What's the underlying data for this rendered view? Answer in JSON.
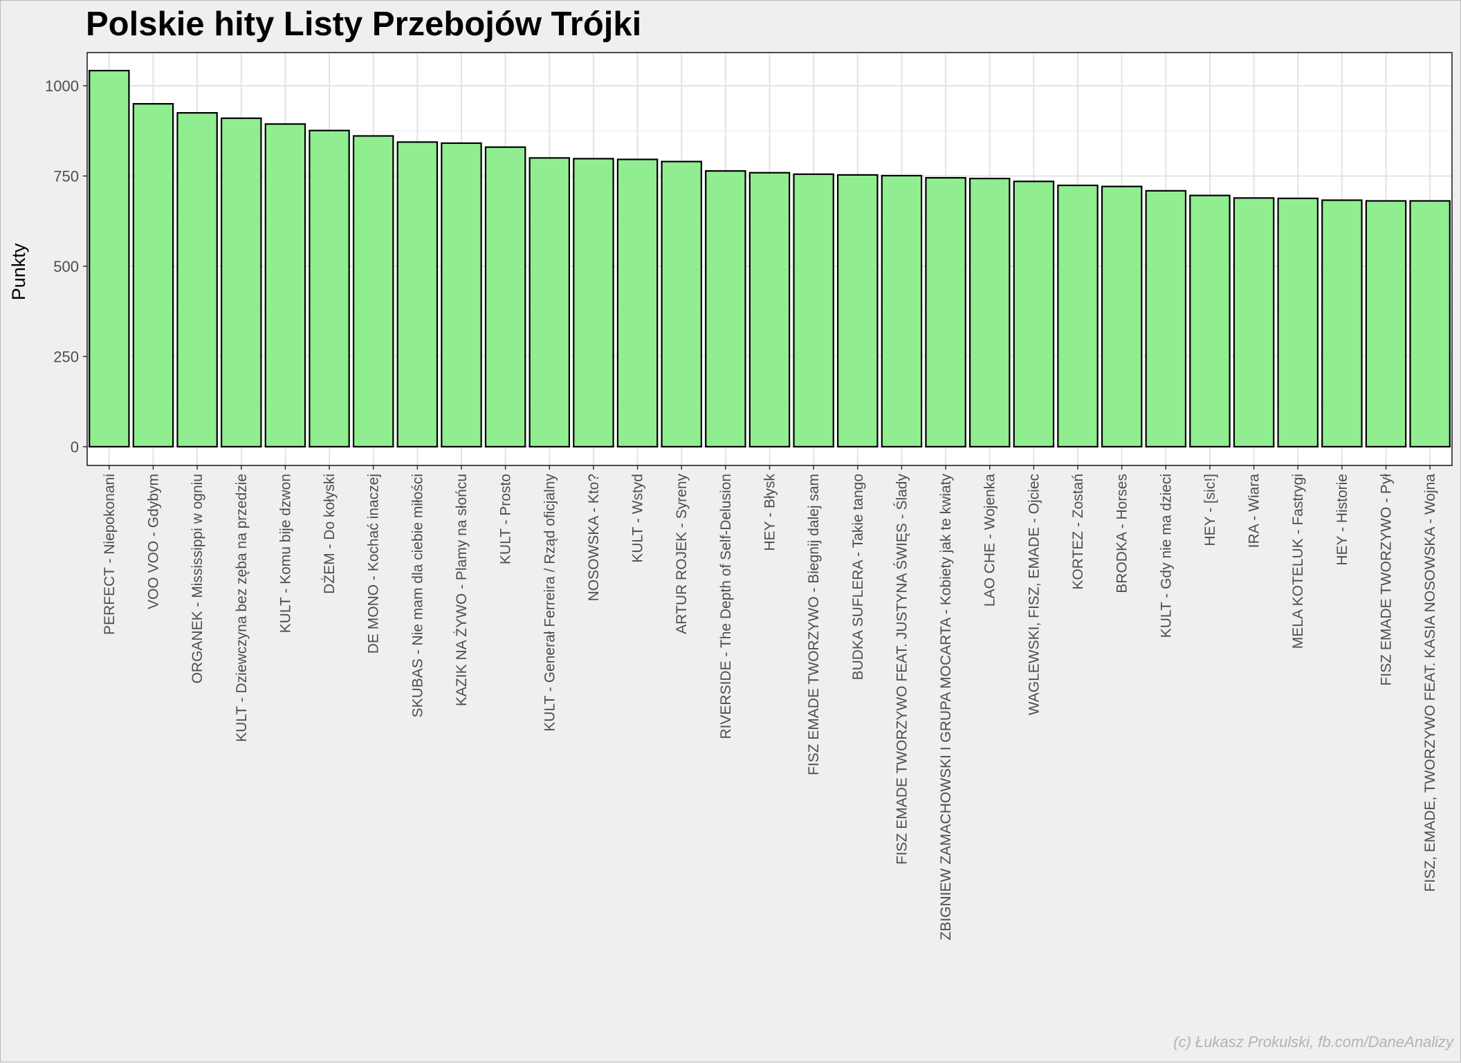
{
  "chart_data": {
    "type": "bar",
    "title": "Polskie hity Listy Przebojów Trójki",
    "xlabel": "",
    "ylabel": "Punkty",
    "ylim": [
      -52,
      1092
    ],
    "yticks": [
      0,
      250,
      500,
      750,
      1000
    ],
    "grid": true,
    "bar_color": "#90ee90",
    "bar_border_color": "#000000",
    "categories": [
      "PERFECT - Niepokonani",
      "VOO VOO - Gdybym",
      "ORGANEK - Mississippi w ogniu",
      "KULT - Dziewczyna bez zęba na przedzie",
      "KULT - Komu bije dzwon",
      "DŻEM - Do kołyski",
      "DE MONO - Kochać inaczej",
      "SKUBAS - Nie mam dla ciebie miłości",
      "KAZIK NA ŻYWO - Plamy na słońcu",
      "KULT - Prosto",
      "KULT - Generał Ferreira / Rząd oficjalny",
      "NOSOWSKA - Kto?",
      "KULT - Wstyd",
      "ARTUR ROJEK - Syreny",
      "RIVERSIDE - The Depth of Self-Delusion",
      "HEY - Błysk",
      "FISZ EMADE TWORZYWO - Biegnij dalej sam",
      "BUDKA SUFLERA - Takie tango",
      "FISZ EMADE TWORZYWO FEAT. JUSTYNA ŚWIĘS - Ślady",
      "ZBIGNIEW ZAMACHOWSKI I GRUPA MOCARTA - Kobiety jak te kwiaty",
      "LAO CHE - Wojenka",
      "WAGLEWSKI, FISZ, EMADE - Ojciec",
      "KORTEZ - Zostań",
      "BRODKA - Horses",
      "KULT - Gdy nie ma dzieci",
      "HEY - [sic!]",
      "IRA - Wiara",
      "MELA KOTELUK - Fastrygi",
      "HEY - Historie",
      "FISZ EMADE TWORZYWO - Pył",
      "FISZ, EMADE, TWORZYWO FEAT. KASIA NOSOWSKA - Wojna"
    ],
    "values": [
      1042,
      950,
      925,
      910,
      894,
      876,
      861,
      844,
      841,
      830,
      800,
      798,
      796,
      790,
      764,
      759,
      755,
      753,
      751,
      745,
      743,
      735,
      724,
      721,
      709,
      696,
      689,
      688,
      683,
      681,
      681
    ]
  },
  "caption": "(c) Łukasz Prokulski, fb.com/DaneAnalizy"
}
